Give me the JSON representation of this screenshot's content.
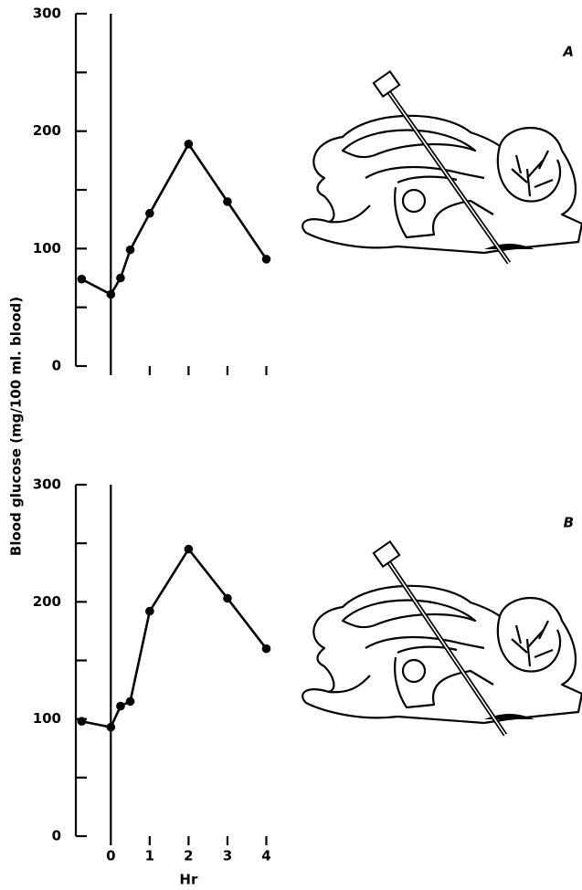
{
  "chart_data": [
    {
      "type": "line",
      "panel_label": "A",
      "ylabel": "Blood glucose (mg/100 ml. blood)",
      "x": [
        -0.75,
        0,
        0.25,
        0.5,
        1,
        2,
        3,
        4
      ],
      "values": [
        74,
        61,
        75,
        99,
        130,
        189,
        140,
        91
      ],
      "ylim": [
        0,
        300
      ],
      "yticks": [
        0,
        100,
        200,
        300
      ],
      "yminor": [
        50,
        150,
        250
      ],
      "xlim": [
        -0.9,
        4.2
      ],
      "xminor": [
        0,
        1,
        2,
        3,
        4
      ],
      "vline": 0,
      "color": "#000000"
    },
    {
      "type": "line",
      "panel_label": "B",
      "xlabel": "Hr",
      "x": [
        -0.75,
        0,
        0.25,
        0.5,
        1,
        2,
        3,
        4
      ],
      "values": [
        98,
        93,
        111,
        115,
        192,
        245,
        203,
        160
      ],
      "ylim": [
        0,
        300
      ],
      "yticks": [
        0,
        100,
        200,
        300
      ],
      "yminor": [
        50,
        150,
        250
      ],
      "xlim": [
        -0.9,
        4.2
      ],
      "xticks": [
        0,
        1,
        2,
        3,
        4
      ],
      "vline": 0,
      "color": "#000000"
    }
  ]
}
